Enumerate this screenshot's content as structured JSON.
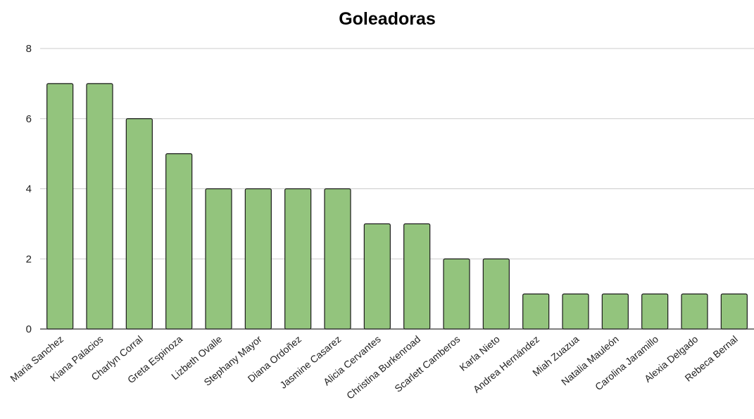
{
  "chart_data": {
    "type": "bar",
    "title": "Goleadoras",
    "xlabel": "",
    "ylabel": "",
    "categories": [
      "Maria Sanchez",
      "Kiana Palacios",
      "Charlyn Corral",
      "Greta Espinoza",
      "Lizbeth Ovalle",
      "Stephany Mayor",
      "Diana Ordoñez",
      "Jasmine Casarez",
      "Alicia Cervantes",
      "Christina Burkenroad",
      "Scarlett Camberos",
      "Karla Nieto",
      "Andrea Hernández",
      "Miah Zuazua",
      "Natalia Mauleón",
      "Carolina Jaramillo",
      "Alexia Delgado",
      "Rebeca Bernal"
    ],
    "values": [
      7,
      7,
      6,
      5,
      4,
      4,
      4,
      4,
      3,
      3,
      2,
      2,
      1,
      1,
      1,
      1,
      1,
      1
    ],
    "ylim": [
      0,
      8
    ],
    "yticks": [
      "0",
      "2",
      "4",
      "6",
      "8"
    ],
    "grid": true,
    "legend": "none",
    "bar_color": "#93c47d",
    "bar_edge_color": "#1a1a1a",
    "grid_color": "#cccccc"
  }
}
